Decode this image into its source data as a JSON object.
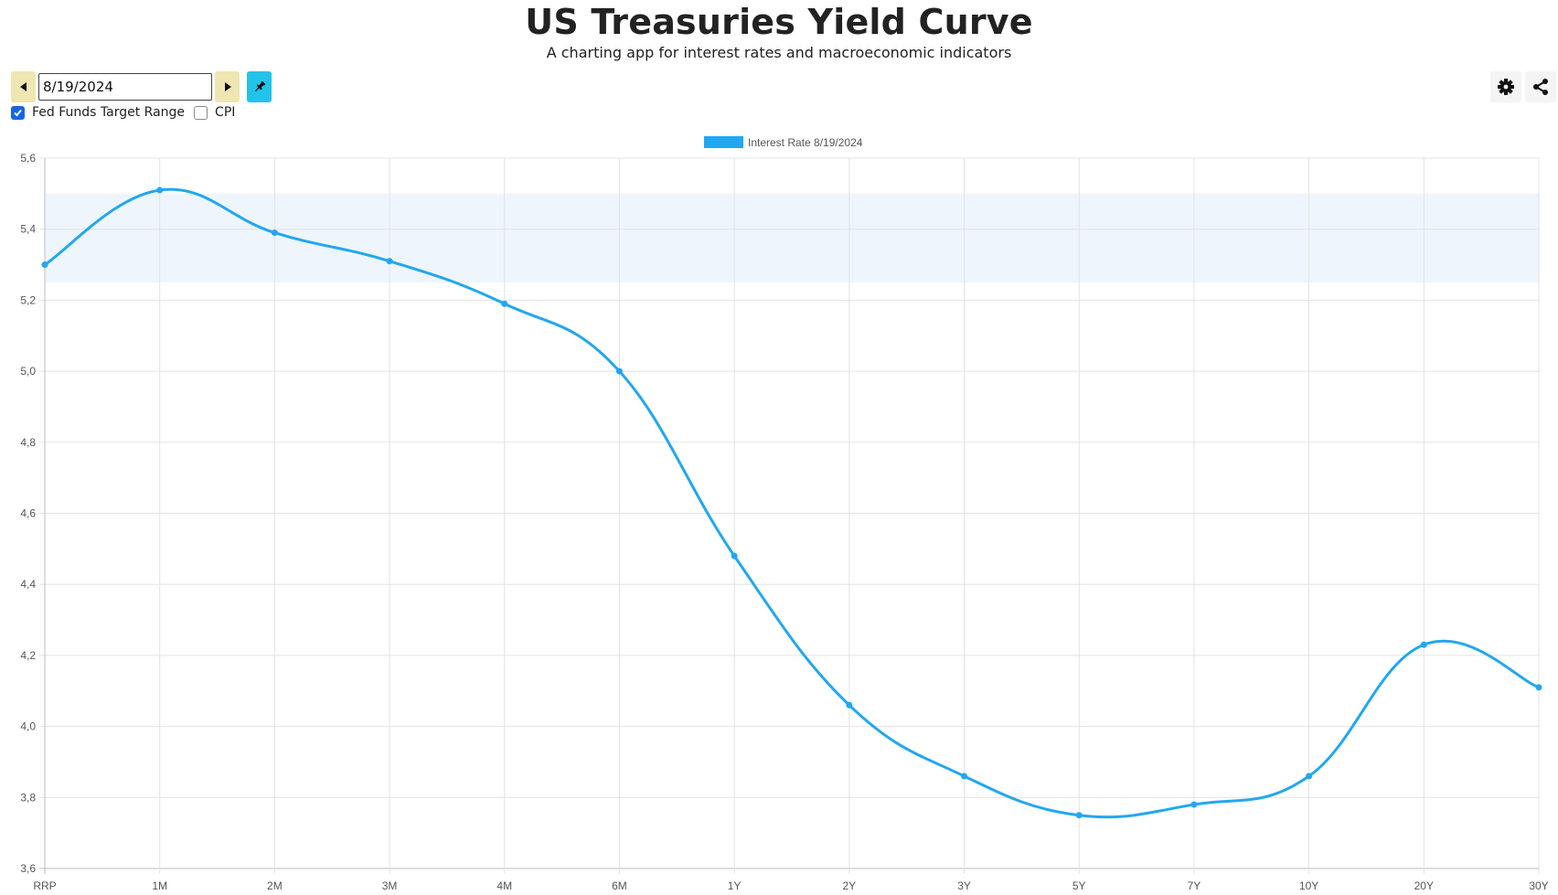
{
  "header": {
    "title": "US Treasuries Yield Curve",
    "subtitle": "A charting app for interest rates and macroeconomic indicators"
  },
  "toolbar": {
    "date_value": "8/19/2024",
    "prev_icon": "caret-left-icon",
    "next_icon": "caret-right-icon",
    "pin_icon": "pin-icon",
    "settings_icon": "gear-icon",
    "share_icon": "share-icon"
  },
  "options": {
    "fed_funds": {
      "label": "Fed Funds Target Range",
      "checked": true
    },
    "cpi": {
      "label": "CPI",
      "checked": false
    }
  },
  "colors": {
    "line": "#22a7f0",
    "band": "#eef5fd",
    "grid": "#e3e3e3",
    "nav_button": "#efe6b2",
    "pin_button": "#23c3e9",
    "checkbox": "#1565e6"
  },
  "chart_data": {
    "type": "line",
    "title": "",
    "xlabel": "",
    "ylabel": "",
    "legend_position": "top-center",
    "grid": true,
    "ylim": [
      3.6,
      5.6
    ],
    "y_ticks": [
      "5,6",
      "5,4",
      "5,2",
      "5,0",
      "4,8",
      "4,6",
      "4,4",
      "4,2",
      "4,0",
      "3,8",
      "3,6"
    ],
    "categories": [
      "RRP",
      "1M",
      "2M",
      "3M",
      "4M",
      "6M",
      "1Y",
      "2Y",
      "3Y",
      "5Y",
      "7Y",
      "10Y",
      "20Y",
      "30Y"
    ],
    "series": [
      {
        "name": "Interest Rate 8/19/2024",
        "values": [
          5.3,
          5.51,
          5.39,
          5.31,
          5.19,
          5.0,
          4.48,
          4.06,
          3.86,
          3.75,
          3.78,
          3.86,
          4.23,
          4.11
        ]
      }
    ],
    "fed_funds_band": [
      5.25,
      5.5
    ]
  }
}
